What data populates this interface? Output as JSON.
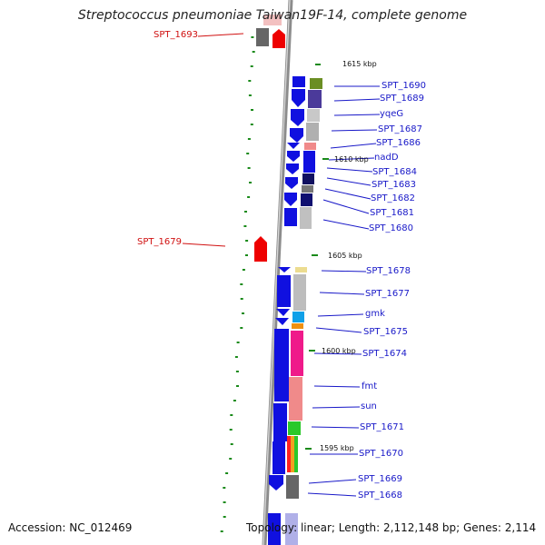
{
  "title": "Streptococcus pneumoniae Taiwan19F-14, complete genome",
  "footer": {
    "accession": "Accession: NC_012469",
    "topology": "Topology: linear; Length: 2,112,148 bp; Genes: 2,114"
  },
  "colors": {
    "gene_blue": "#1010e0",
    "gene_red": "#ee0000",
    "label_blue": "#1818c8",
    "label_red": "#d01010",
    "gc_green": "#1a8a1a",
    "backbone": "#8c8c8c"
  },
  "kbp_marks": [
    "1615 kbp",
    "1610 kbp",
    "1605 kbp",
    "1600 kbp",
    "1595 kbp"
  ],
  "genes_left": [
    {
      "id": "SPT_1693",
      "strand": "+"
    },
    {
      "id": "SPT_1679",
      "strand": "+"
    }
  ],
  "genes_right": [
    {
      "id": "SPT_1690"
    },
    {
      "id": "SPT_1689"
    },
    {
      "id": "yqeG"
    },
    {
      "id": "SPT_1687"
    },
    {
      "id": "SPT_1686"
    },
    {
      "id": "nadD"
    },
    {
      "id": "SPT_1684"
    },
    {
      "id": "SPT_1683"
    },
    {
      "id": "SPT_1682"
    },
    {
      "id": "SPT_1681"
    },
    {
      "id": "SPT_1680"
    },
    {
      "id": "SPT_1678"
    },
    {
      "id": "SPT_1677"
    },
    {
      "id": "gmk"
    },
    {
      "id": "SPT_1675"
    },
    {
      "id": "SPT_1674"
    },
    {
      "id": "fmt"
    },
    {
      "id": "sun"
    },
    {
      "id": "SPT_1671"
    },
    {
      "id": "SPT_1670"
    },
    {
      "id": "SPT_1669"
    },
    {
      "id": "SPT_1668"
    }
  ]
}
